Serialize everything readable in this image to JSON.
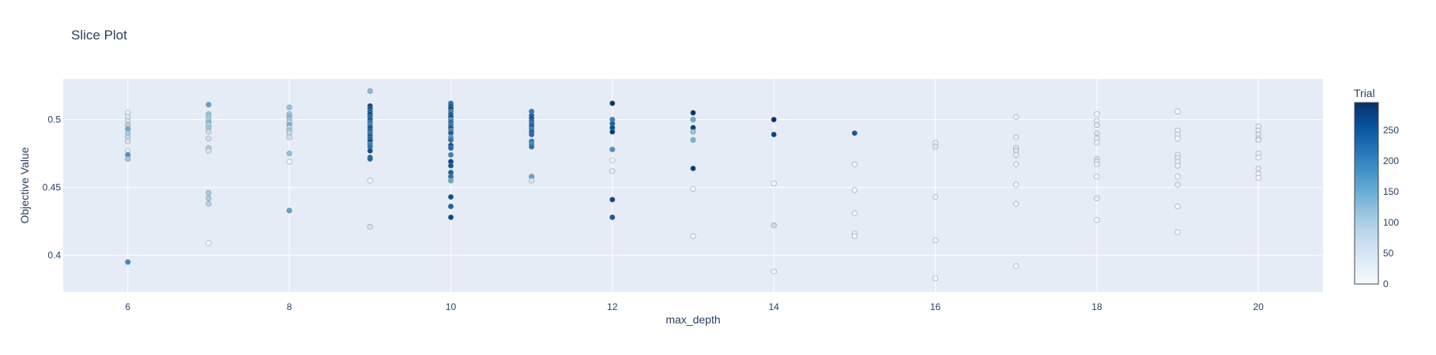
{
  "chart_data": {
    "type": "scatter",
    "title": "Slice Plot",
    "xlabel": "max_depth",
    "ylabel": "Objective Value",
    "xlim": [
      5.2,
      20.8
    ],
    "ylim": [
      0.373,
      0.53
    ],
    "x_ticks": [
      6,
      8,
      10,
      12,
      14,
      16,
      18,
      20
    ],
    "x_tick_labels": [
      "6",
      "8",
      "10",
      "12",
      "14",
      "16",
      "18",
      "20"
    ],
    "y_ticks": [
      0.4,
      0.45,
      0.5
    ],
    "y_tick_labels": [
      "0.4",
      "0.45",
      "0.5"
    ],
    "grid": true,
    "colorbar": {
      "title": "Trial",
      "range": [
        0,
        295
      ],
      "ticks": [
        0,
        50,
        100,
        150,
        200,
        250
      ],
      "tick_labels": [
        "0",
        "50",
        "100",
        "150",
        "200",
        "250"
      ],
      "colorscale": [
        "#f7fbff",
        "#deebf7",
        "#c6dbef",
        "#9ecae1",
        "#6baed6",
        "#4292c6",
        "#2171b5",
        "#08519c",
        "#08306b"
      ]
    },
    "points": [
      {
        "x": 6,
        "y": 0.505,
        "trial": 20
      },
      {
        "x": 6,
        "y": 0.502,
        "trial": 40
      },
      {
        "x": 6,
        "y": 0.499,
        "trial": 60
      },
      {
        "x": 6,
        "y": 0.496,
        "trial": 90
      },
      {
        "x": 6,
        "y": 0.493,
        "trial": 150
      },
      {
        "x": 6,
        "y": 0.49,
        "trial": 100
      },
      {
        "x": 6,
        "y": 0.487,
        "trial": 80
      },
      {
        "x": 6,
        "y": 0.484,
        "trial": 50
      },
      {
        "x": 6,
        "y": 0.477,
        "trial": 30
      },
      {
        "x": 6,
        "y": 0.474,
        "trial": 180
      },
      {
        "x": 6,
        "y": 0.471,
        "trial": 110
      },
      {
        "x": 6,
        "y": 0.395,
        "trial": 190
      },
      {
        "x": 7,
        "y": 0.511,
        "trial": 160
      },
      {
        "x": 7,
        "y": 0.504,
        "trial": 120
      },
      {
        "x": 7,
        "y": 0.502,
        "trial": 100
      },
      {
        "x": 7,
        "y": 0.5,
        "trial": 90
      },
      {
        "x": 7,
        "y": 0.498,
        "trial": 130
      },
      {
        "x": 7,
        "y": 0.496,
        "trial": 80
      },
      {
        "x": 7,
        "y": 0.494,
        "trial": 110
      },
      {
        "x": 7,
        "y": 0.491,
        "trial": 70
      },
      {
        "x": 7,
        "y": 0.486,
        "trial": 60
      },
      {
        "x": 7,
        "y": 0.479,
        "trial": 100
      },
      {
        "x": 7,
        "y": 0.477,
        "trial": 50
      },
      {
        "x": 7,
        "y": 0.446,
        "trial": 110
      },
      {
        "x": 7,
        "y": 0.442,
        "trial": 100
      },
      {
        "x": 7,
        "y": 0.438,
        "trial": 90
      },
      {
        "x": 7,
        "y": 0.409,
        "trial": 10
      },
      {
        "x": 8,
        "y": 0.509,
        "trial": 120
      },
      {
        "x": 8,
        "y": 0.504,
        "trial": 110
      },
      {
        "x": 8,
        "y": 0.502,
        "trial": 130
      },
      {
        "x": 8,
        "y": 0.5,
        "trial": 100
      },
      {
        "x": 8,
        "y": 0.498,
        "trial": 90
      },
      {
        "x": 8,
        "y": 0.496,
        "trial": 140
      },
      {
        "x": 8,
        "y": 0.494,
        "trial": 80
      },
      {
        "x": 8,
        "y": 0.492,
        "trial": 100
      },
      {
        "x": 8,
        "y": 0.49,
        "trial": 70
      },
      {
        "x": 8,
        "y": 0.487,
        "trial": 60
      },
      {
        "x": 8,
        "y": 0.475,
        "trial": 120
      },
      {
        "x": 8,
        "y": 0.469,
        "trial": 10
      },
      {
        "x": 8,
        "y": 0.433,
        "trial": 160
      },
      {
        "x": 9,
        "y": 0.521,
        "trial": 130
      },
      {
        "x": 9,
        "y": 0.51,
        "trial": 280
      },
      {
        "x": 9,
        "y": 0.508,
        "trial": 260
      },
      {
        "x": 9,
        "y": 0.506,
        "trial": 240
      },
      {
        "x": 9,
        "y": 0.504,
        "trial": 270
      },
      {
        "x": 9,
        "y": 0.502,
        "trial": 230
      },
      {
        "x": 9,
        "y": 0.5,
        "trial": 250
      },
      {
        "x": 9,
        "y": 0.498,
        "trial": 220
      },
      {
        "x": 9,
        "y": 0.496,
        "trial": 200
      },
      {
        "x": 9,
        "y": 0.494,
        "trial": 260
      },
      {
        "x": 9,
        "y": 0.492,
        "trial": 240
      },
      {
        "x": 9,
        "y": 0.49,
        "trial": 210
      },
      {
        "x": 9,
        "y": 0.488,
        "trial": 250
      },
      {
        "x": 9,
        "y": 0.486,
        "trial": 230
      },
      {
        "x": 9,
        "y": 0.484,
        "trial": 270
      },
      {
        "x": 9,
        "y": 0.482,
        "trial": 200
      },
      {
        "x": 9,
        "y": 0.48,
        "trial": 220
      },
      {
        "x": 9,
        "y": 0.477,
        "trial": 260
      },
      {
        "x": 9,
        "y": 0.472,
        "trial": 280
      },
      {
        "x": 9,
        "y": 0.471,
        "trial": 230
      },
      {
        "x": 9,
        "y": 0.455,
        "trial": 10
      },
      {
        "x": 9,
        "y": 0.421,
        "trial": 60
      },
      {
        "x": 10,
        "y": 0.512,
        "trial": 220
      },
      {
        "x": 10,
        "y": 0.51,
        "trial": 250
      },
      {
        "x": 10,
        "y": 0.508,
        "trial": 270
      },
      {
        "x": 10,
        "y": 0.506,
        "trial": 200
      },
      {
        "x": 10,
        "y": 0.504,
        "trial": 240
      },
      {
        "x": 10,
        "y": 0.502,
        "trial": 260
      },
      {
        "x": 10,
        "y": 0.5,
        "trial": 180
      },
      {
        "x": 10,
        "y": 0.498,
        "trial": 230
      },
      {
        "x": 10,
        "y": 0.496,
        "trial": 210
      },
      {
        "x": 10,
        "y": 0.494,
        "trial": 250
      },
      {
        "x": 10,
        "y": 0.492,
        "trial": 190
      },
      {
        "x": 10,
        "y": 0.49,
        "trial": 240
      },
      {
        "x": 10,
        "y": 0.487,
        "trial": 170
      },
      {
        "x": 10,
        "y": 0.485,
        "trial": 220
      },
      {
        "x": 10,
        "y": 0.481,
        "trial": 260
      },
      {
        "x": 10,
        "y": 0.479,
        "trial": 230
      },
      {
        "x": 10,
        "y": 0.474,
        "trial": 200
      },
      {
        "x": 10,
        "y": 0.469,
        "trial": 270
      },
      {
        "x": 10,
        "y": 0.466,
        "trial": 250
      },
      {
        "x": 10,
        "y": 0.461,
        "trial": 240
      },
      {
        "x": 10,
        "y": 0.458,
        "trial": 220
      },
      {
        "x": 10,
        "y": 0.455,
        "trial": 150
      },
      {
        "x": 10,
        "y": 0.443,
        "trial": 260
      },
      {
        "x": 10,
        "y": 0.436,
        "trial": 240
      },
      {
        "x": 10,
        "y": 0.428,
        "trial": 270
      },
      {
        "x": 11,
        "y": 0.506,
        "trial": 210
      },
      {
        "x": 11,
        "y": 0.503,
        "trial": 240
      },
      {
        "x": 11,
        "y": 0.501,
        "trial": 260
      },
      {
        "x": 11,
        "y": 0.499,
        "trial": 230
      },
      {
        "x": 11,
        "y": 0.497,
        "trial": 220
      },
      {
        "x": 11,
        "y": 0.495,
        "trial": 250
      },
      {
        "x": 11,
        "y": 0.493,
        "trial": 200
      },
      {
        "x": 11,
        "y": 0.491,
        "trial": 240
      },
      {
        "x": 11,
        "y": 0.489,
        "trial": 230
      },
      {
        "x": 11,
        "y": 0.484,
        "trial": 210
      },
      {
        "x": 11,
        "y": 0.482,
        "trial": 190
      },
      {
        "x": 11,
        "y": 0.48,
        "trial": 220
      },
      {
        "x": 11,
        "y": 0.458,
        "trial": 160
      },
      {
        "x": 11,
        "y": 0.455,
        "trial": 50
      },
      {
        "x": 12,
        "y": 0.512,
        "trial": 290
      },
      {
        "x": 12,
        "y": 0.5,
        "trial": 200
      },
      {
        "x": 12,
        "y": 0.497,
        "trial": 240
      },
      {
        "x": 12,
        "y": 0.494,
        "trial": 260
      },
      {
        "x": 12,
        "y": 0.491,
        "trial": 280
      },
      {
        "x": 12,
        "y": 0.478,
        "trial": 180
      },
      {
        "x": 12,
        "y": 0.47,
        "trial": 10
      },
      {
        "x": 12,
        "y": 0.462,
        "trial": 30
      },
      {
        "x": 12,
        "y": 0.441,
        "trial": 270
      },
      {
        "x": 12,
        "y": 0.428,
        "trial": 250
      },
      {
        "x": 13,
        "y": 0.505,
        "trial": 290
      },
      {
        "x": 13,
        "y": 0.5,
        "trial": 150
      },
      {
        "x": 13,
        "y": 0.494,
        "trial": 280
      },
      {
        "x": 13,
        "y": 0.491,
        "trial": 120
      },
      {
        "x": 13,
        "y": 0.485,
        "trial": 140
      },
      {
        "x": 13,
        "y": 0.464,
        "trial": 280
      },
      {
        "x": 13,
        "y": 0.449,
        "trial": 10
      },
      {
        "x": 13,
        "y": 0.414,
        "trial": 10
      },
      {
        "x": 14,
        "y": 0.5,
        "trial": 295
      },
      {
        "x": 14,
        "y": 0.489,
        "trial": 270
      },
      {
        "x": 14,
        "y": 0.453,
        "trial": 10
      },
      {
        "x": 14,
        "y": 0.422,
        "trial": 70
      },
      {
        "x": 14,
        "y": 0.388,
        "trial": 10
      },
      {
        "x": 15,
        "y": 0.49,
        "trial": 250
      },
      {
        "x": 15,
        "y": 0.467,
        "trial": 10
      },
      {
        "x": 15,
        "y": 0.448,
        "trial": 10
      },
      {
        "x": 15,
        "y": 0.431,
        "trial": 10
      },
      {
        "x": 15,
        "y": 0.416,
        "trial": 20
      },
      {
        "x": 15,
        "y": 0.414,
        "trial": 10
      },
      {
        "x": 16,
        "y": 0.483,
        "trial": 30
      },
      {
        "x": 16,
        "y": 0.48,
        "trial": 40
      },
      {
        "x": 16,
        "y": 0.443,
        "trial": 20
      },
      {
        "x": 16,
        "y": 0.411,
        "trial": 10
      },
      {
        "x": 16,
        "y": 0.383,
        "trial": 10
      },
      {
        "x": 17,
        "y": 0.502,
        "trial": 20
      },
      {
        "x": 17,
        "y": 0.487,
        "trial": 30
      },
      {
        "x": 17,
        "y": 0.479,
        "trial": 40
      },
      {
        "x": 17,
        "y": 0.477,
        "trial": 50
      },
      {
        "x": 17,
        "y": 0.474,
        "trial": 30
      },
      {
        "x": 17,
        "y": 0.467,
        "trial": 20
      },
      {
        "x": 17,
        "y": 0.452,
        "trial": 10
      },
      {
        "x": 17,
        "y": 0.438,
        "trial": 20
      },
      {
        "x": 17,
        "y": 0.392,
        "trial": 10
      },
      {
        "x": 18,
        "y": 0.504,
        "trial": 10
      },
      {
        "x": 18,
        "y": 0.499,
        "trial": 20
      },
      {
        "x": 18,
        "y": 0.496,
        "trial": 40
      },
      {
        "x": 18,
        "y": 0.49,
        "trial": 50
      },
      {
        "x": 18,
        "y": 0.486,
        "trial": 30
      },
      {
        "x": 18,
        "y": 0.483,
        "trial": 20
      },
      {
        "x": 18,
        "y": 0.471,
        "trial": 40
      },
      {
        "x": 18,
        "y": 0.469,
        "trial": 30
      },
      {
        "x": 18,
        "y": 0.467,
        "trial": 20
      },
      {
        "x": 18,
        "y": 0.458,
        "trial": 10
      },
      {
        "x": 18,
        "y": 0.442,
        "trial": 30
      },
      {
        "x": 18,
        "y": 0.426,
        "trial": 10
      },
      {
        "x": 19,
        "y": 0.506,
        "trial": 10
      },
      {
        "x": 19,
        "y": 0.492,
        "trial": 20
      },
      {
        "x": 19,
        "y": 0.489,
        "trial": 30
      },
      {
        "x": 19,
        "y": 0.486,
        "trial": 10
      },
      {
        "x": 19,
        "y": 0.474,
        "trial": 20
      },
      {
        "x": 19,
        "y": 0.472,
        "trial": 40
      },
      {
        "x": 19,
        "y": 0.469,
        "trial": 30
      },
      {
        "x": 19,
        "y": 0.466,
        "trial": 20
      },
      {
        "x": 19,
        "y": 0.458,
        "trial": 10
      },
      {
        "x": 19,
        "y": 0.452,
        "trial": 30
      },
      {
        "x": 19,
        "y": 0.436,
        "trial": 10
      },
      {
        "x": 19,
        "y": 0.417,
        "trial": 10
      },
      {
        "x": 20,
        "y": 0.495,
        "trial": 20
      },
      {
        "x": 20,
        "y": 0.492,
        "trial": 30
      },
      {
        "x": 20,
        "y": 0.489,
        "trial": 40
      },
      {
        "x": 20,
        "y": 0.486,
        "trial": 20
      },
      {
        "x": 20,
        "y": 0.485,
        "trial": 30
      },
      {
        "x": 20,
        "y": 0.475,
        "trial": 20
      },
      {
        "x": 20,
        "y": 0.472,
        "trial": 10
      },
      {
        "x": 20,
        "y": 0.464,
        "trial": 30
      },
      {
        "x": 20,
        "y": 0.46,
        "trial": 20
      },
      {
        "x": 20,
        "y": 0.457,
        "trial": 10
      }
    ]
  }
}
